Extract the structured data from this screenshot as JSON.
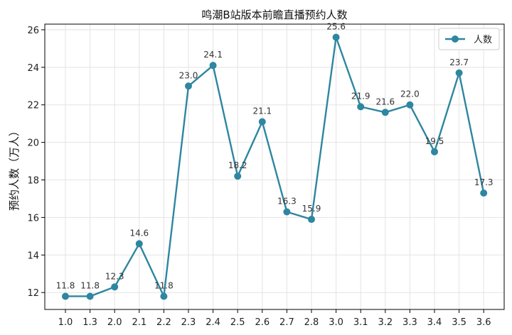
{
  "chart_data": {
    "type": "line",
    "title": "鸣潮B站版本前瞻直播预约人数",
    "xlabel": "",
    "ylabel": "预约人数（万人）",
    "categories": [
      "1.0",
      "1.3",
      "2.0",
      "2.1",
      "2.2",
      "2.3",
      "2.4",
      "2.5",
      "2.6",
      "2.7",
      "2.8",
      "3.0",
      "3.1",
      "3.2",
      "3.3",
      "3.4",
      "3.5",
      "3.6"
    ],
    "series": [
      {
        "name": "人数",
        "values": [
          11.8,
          11.8,
          12.3,
          14.6,
          11.8,
          23.0,
          24.1,
          18.2,
          21.1,
          16.3,
          15.9,
          25.6,
          21.9,
          21.6,
          22.0,
          19.5,
          23.7,
          17.3
        ],
        "color": "#2e86a0"
      }
    ],
    "data_labels": [
      "11.8",
      "11.8",
      "12.3",
      "14.6",
      "11.8",
      "23.0",
      "24.1",
      "18.2",
      "21.1",
      "16.3",
      "15.9",
      "25.6",
      "21.9",
      "21.6",
      "22.0",
      "19.5",
      "23.7",
      "17.3"
    ],
    "y_ticks": [
      "12",
      "14",
      "16",
      "18",
      "20",
      "22",
      "24",
      "26"
    ],
    "ylim": [
      11.1,
      26.3
    ],
    "grid": true,
    "legend_position": "top-right"
  }
}
